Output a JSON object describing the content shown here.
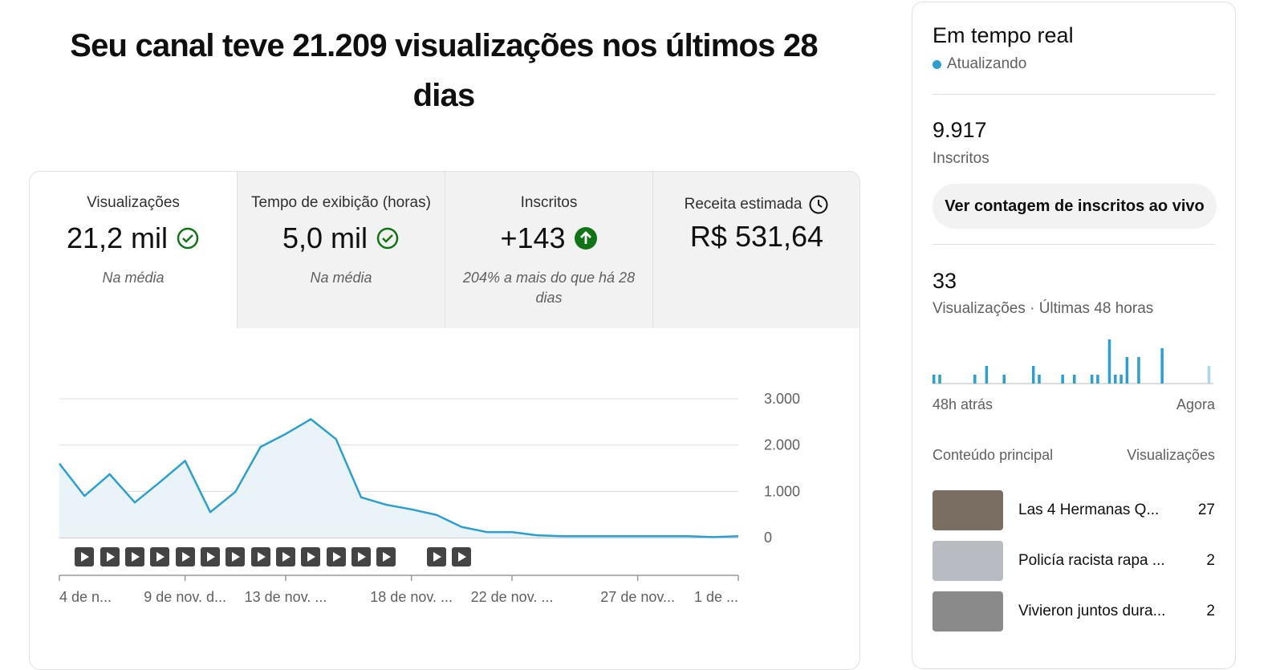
{
  "header": {
    "title": "Seu canal teve 21.209 visualizações nos últimos 28 dias"
  },
  "metrics": [
    {
      "label": "Visualizações",
      "value": "21,2 mil",
      "note": "Na média"
    },
    {
      "label": "Tempo de exibição (horas)",
      "value": "5,0 mil",
      "note": "Na média"
    },
    {
      "label": "Inscritos",
      "value": "+143",
      "note": "204% a mais do que há 28 dias"
    },
    {
      "label": "Receita estimada",
      "value": "R$ 531,64"
    }
  ],
  "chart_data": [
    {
      "type": "line",
      "color": "#2b9fcf",
      "fill": "#eaf4f8",
      "categories": [
        "4 de n...",
        null,
        null,
        null,
        null,
        "9 de nov. d...",
        null,
        null,
        null,
        "13 de nov. ...",
        null,
        null,
        null,
        null,
        "18 de nov. ...",
        null,
        null,
        null,
        "22 de nov. ...",
        null,
        null,
        null,
        null,
        "27 de nov...",
        null,
        null,
        null,
        "1 de ..."
      ],
      "values": [
        1600,
        900,
        1370,
        760,
        1200,
        1660,
        550,
        990,
        1960,
        2240,
        2560,
        2130,
        870,
        710,
        610,
        490,
        230,
        120,
        120,
        50,
        30,
        30,
        30,
        30,
        30,
        30,
        10,
        30
      ],
      "ylim": [
        0,
        3000
      ],
      "yticks": [
        0,
        {
          "value": 1000,
          "label": "1.000"
        },
        {
          "value": 2000,
          "label": "2.000"
        },
        {
          "value": 3000,
          "label": "3.000"
        }
      ],
      "grid": true
    },
    {
      "type": "bar",
      "color": "#2b9fcf",
      "current_color": "#a9d8ea",
      "values": [
        1,
        1,
        0,
        0,
        0,
        0,
        0,
        1,
        0,
        2,
        0,
        0,
        1,
        0,
        0,
        0,
        0,
        2,
        1,
        0,
        0,
        0,
        1,
        0,
        1,
        0,
        0,
        1,
        1,
        0,
        5,
        1,
        1,
        3,
        0,
        3,
        0,
        0,
        0,
        4,
        0,
        0,
        0,
        0,
        0,
        0,
        0,
        2
      ],
      "ylim": [
        0,
        5
      ]
    }
  ],
  "realtime": {
    "title": "Em tempo real",
    "status": "Atualizando",
    "subscribers": "9.917",
    "subscribers_label": "Inscritos",
    "button": "Ver contagem de inscritos ao vivo",
    "views": "33",
    "views_label": "Visualizações · Últimas 48 horas",
    "range_start": "48h atrás",
    "range_end": "Agora",
    "top_content_header": "Conteúdo principal",
    "views_header": "Visualizações",
    "items": [
      {
        "title": "Las 4 Hermanas Q...",
        "views": "27"
      },
      {
        "title": "Policía racista rapa ...",
        "views": "2"
      },
      {
        "title": "Vivieron juntos dura...",
        "views": "2"
      }
    ]
  }
}
